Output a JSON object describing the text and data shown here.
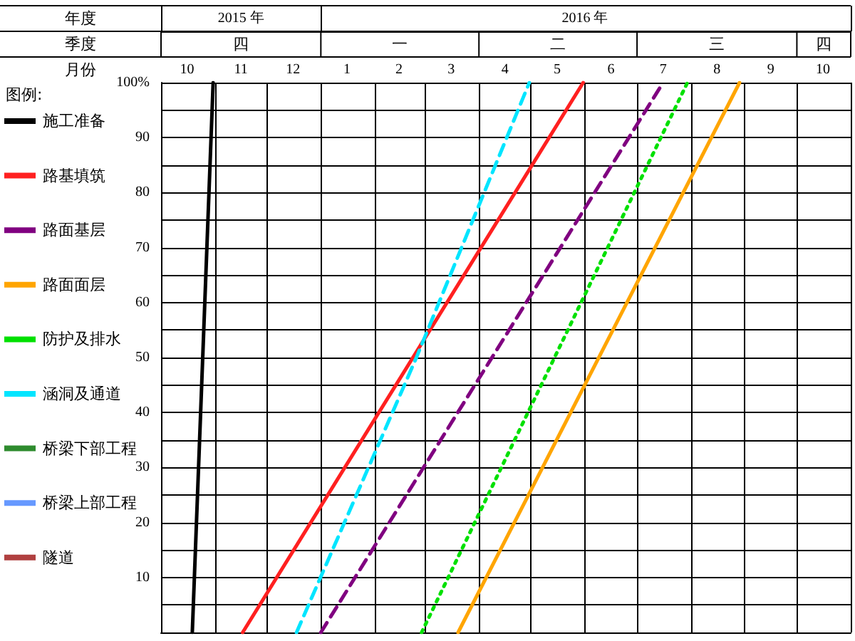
{
  "chart_data": {
    "type": "line",
    "xlabel": "月份",
    "x2label": "年度",
    "annotations": [
      "季度",
      "四",
      "一",
      "二",
      "三",
      "四"
    ],
    "xlim": [
      "2015-10-01",
      "2016-11-01"
    ],
    "x2lim": [
      "2015-10-01",
      "2016-11-01"
    ],
    "xticks": [
      {
        "value": "2015-10-01",
        "label": null
      },
      {
        "value": "2015-10-16",
        "label": "10"
      },
      {
        "value": "2015-11-01",
        "label": null
      },
      {
        "value": "2015-11-16",
        "label": "11"
      },
      {
        "value": "2015-12-01",
        "label": null
      },
      {
        "value": "2015-12-16",
        "label": "12"
      },
      {
        "value": "2016-01-01",
        "label": null
      },
      {
        "value": "2016-01-16",
        "label": "1"
      },
      {
        "value": "2016-02-01",
        "label": null
      },
      {
        "value": "2016-02-15",
        "label": "2"
      },
      {
        "value": "2016-03-01",
        "label": null
      },
      {
        "value": "2016-03-16",
        "label": "3"
      },
      {
        "value": "2016-04-01",
        "label": null
      },
      {
        "value": "2016-04-16",
        "label": "4"
      },
      {
        "value": "2016-05-01",
        "label": null
      },
      {
        "value": "2016-05-16",
        "label": "5"
      },
      {
        "value": "2016-06-01",
        "label": null
      },
      {
        "value": "2016-06-16",
        "label": "6"
      },
      {
        "value": "2016-07-01",
        "label": null
      },
      {
        "value": "2016-07-16",
        "label": "7"
      },
      {
        "value": "2016-08-01",
        "label": null
      },
      {
        "value": "2016-08-16",
        "label": "8"
      },
      {
        "value": "2016-09-01",
        "label": null
      },
      {
        "value": "2016-09-16",
        "label": "9"
      },
      {
        "value": "2016-10-01",
        "label": null
      },
      {
        "value": "2016-10-16",
        "label": "10"
      },
      {
        "value": "2016-11-01",
        "label": null
      }
    ],
    "x2ticks": [
      {
        "value": "2015-10-01",
        "label": null
      },
      {
        "value": "2015-11-16",
        "label": "2015 年"
      },
      {
        "value": "2016-01-01",
        "label": null
      },
      {
        "value": "2016-06-01",
        "label": "2016 年"
      },
      {
        "value": "2016-11-01",
        "label": null
      }
    ],
    "ylim": [
      0,
      100
    ],
    "yticks": [
      {
        "value": 0,
        "label": null
      },
      {
        "value": 5,
        "label": null
      },
      10,
      {
        "value": 15,
        "label": null
      },
      20,
      {
        "value": 25,
        "label": null
      },
      30,
      {
        "value": 35,
        "label": null
      },
      40,
      {
        "value": 45,
        "label": null
      },
      50,
      {
        "value": 55,
        "label": null
      },
      60,
      {
        "value": 65,
        "label": null
      },
      70,
      {
        "value": 75,
        "label": null
      },
      80,
      {
        "value": 85,
        "label": null
      },
      90,
      {
        "value": 95,
        "label": null
      },
      {
        "value": 100,
        "label": "100%"
      }
    ],
    "grid": true,
    "legend": "left",
    "legend_title": "图例:",
    "marker": "none",
    "series": [
      {
        "name": "施工准备",
        "color": "#000000",
        "line_style": "solid",
        "x": [
          "2015-10-19",
          "2015-10-31"
        ],
        "values": [
          0,
          100
        ]
      },
      {
        "name": "路基填筑",
        "color": "#ff2020",
        "line_style": "solid",
        "x": [
          "2015-11-17",
          "2016-05-31"
        ],
        "values": [
          0,
          100
        ]
      },
      {
        "name": "路面基层",
        "color": "#800080",
        "line_style": "dashed",
        "x": [
          "2016-01-01",
          "2016-07-16"
        ],
        "values": [
          0,
          100
        ]
      },
      {
        "name": "路面面层",
        "color": "#ffa500",
        "line_style": "solid",
        "x": [
          "2016-03-20",
          "2016-08-29"
        ],
        "values": [
          0,
          100
        ]
      },
      {
        "name": "防护及排水",
        "color": "#00e000",
        "line_style": "dotted",
        "x": [
          "2016-02-28",
          "2016-07-30"
        ],
        "values": [
          0,
          100
        ]
      },
      {
        "name": "涵洞及通道",
        "color": "#00e5ff",
        "line_style": "dashed",
        "x": [
          "2015-12-18",
          "2016-02-25",
          "2016-04-30"
        ],
        "values": [
          0,
          50,
          100
        ]
      },
      {
        "name": "桥梁下部工程",
        "color": "#2e8b2e",
        "line_style": "solid"
      },
      {
        "name": "桥梁上部工程",
        "color": "#6699ff",
        "line_style": "solid"
      },
      {
        "name": "隧道",
        "color": "#b04040",
        "line_style": "dashed"
      }
    ]
  }
}
